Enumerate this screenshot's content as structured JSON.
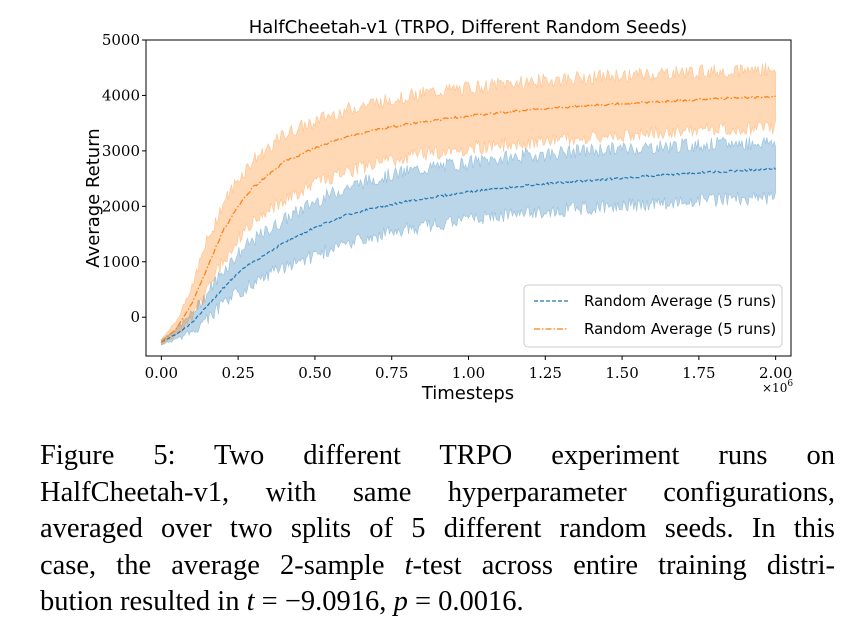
{
  "chart_data": {
    "type": "line",
    "title": "HalfCheetah-v1 (TRPO, Different Random Seeds)",
    "xlabel": "Timesteps",
    "ylabel": "Average Return",
    "x_multiplier": "×10",
    "x_multiplier_exp": "6",
    "xlim": [
      -0.05,
      2.05
    ],
    "ylim": [
      -700,
      5000
    ],
    "xticks": [
      0.0,
      0.25,
      0.5,
      0.75,
      1.0,
      1.25,
      1.5,
      1.75,
      2.0
    ],
    "xtick_labels": [
      "0.00",
      "0.25",
      "0.50",
      "0.75",
      "1.00",
      "1.25",
      "1.50",
      "1.75",
      "2.00"
    ],
    "yticks": [
      0,
      1000,
      2000,
      3000,
      4000,
      5000
    ],
    "ytick_labels": [
      "0",
      "1000",
      "2000",
      "3000",
      "4000",
      "5000"
    ],
    "grid": false,
    "legend_position": "lower-right",
    "series": [
      {
        "name": "Random Average (5 runs)",
        "color": "#1f77b4",
        "line_style": "dashed",
        "x": [
          0.0,
          0.05,
          0.1,
          0.15,
          0.2,
          0.25,
          0.3,
          0.4,
          0.5,
          0.6,
          0.7,
          0.8,
          0.9,
          1.0,
          1.1,
          1.2,
          1.3,
          1.4,
          1.5,
          1.6,
          1.7,
          1.8,
          1.9,
          2.0
        ],
        "mean": [
          -450,
          -300,
          -100,
          200,
          520,
          800,
          1000,
          1350,
          1620,
          1840,
          1980,
          2090,
          2180,
          2260,
          2320,
          2380,
          2430,
          2470,
          2510,
          2550,
          2590,
          2620,
          2650,
          2680
        ],
        "lower": [
          -500,
          -380,
          -250,
          0,
          250,
          480,
          650,
          950,
          1150,
          1350,
          1500,
          1620,
          1720,
          1800,
          1860,
          1920,
          1970,
          2010,
          2050,
          2090,
          2120,
          2150,
          2180,
          2200
        ],
        "upper": [
          -400,
          -230,
          50,
          400,
          800,
          1110,
          1350,
          1720,
          2050,
          2300,
          2470,
          2590,
          2680,
          2750,
          2820,
          2880,
          2930,
          2970,
          3000,
          3030,
          3060,
          3080,
          3100,
          3130
        ]
      },
      {
        "name": "Random Average (5 runs)",
        "color": "#ff7f0e",
        "line_style": "dashdot",
        "x": [
          0.0,
          0.05,
          0.1,
          0.15,
          0.2,
          0.25,
          0.3,
          0.4,
          0.5,
          0.6,
          0.7,
          0.8,
          0.9,
          1.0,
          1.1,
          1.2,
          1.3,
          1.4,
          1.5,
          1.6,
          1.7,
          1.8,
          1.9,
          2.0
        ],
        "mean": [
          -450,
          -200,
          250,
          900,
          1550,
          2000,
          2350,
          2800,
          3050,
          3250,
          3380,
          3480,
          3560,
          3630,
          3690,
          3740,
          3780,
          3820,
          3850,
          3880,
          3910,
          3940,
          3960,
          3980
        ],
        "lower": [
          -500,
          -300,
          0,
          500,
          1050,
          1450,
          1750,
          2150,
          2450,
          2650,
          2800,
          2920,
          3010,
          3080,
          3140,
          3200,
          3250,
          3290,
          3330,
          3360,
          3390,
          3420,
          3440,
          3460
        ],
        "upper": [
          -400,
          -80,
          550,
          1350,
          2000,
          2450,
          2800,
          3250,
          3500,
          3700,
          3840,
          3950,
          4030,
          4100,
          4160,
          4210,
          4250,
          4290,
          4320,
          4350,
          4380,
          4400,
          4420,
          4440
        ]
      }
    ]
  },
  "caption": {
    "line1_a": "Figure 5: Two different TRPO experiment runs on",
    "line2": "HalfCheetah-v1, with same hyperparameter configurations,",
    "line3": "averaged over two splits of 5 different random seeds. In this",
    "line4_a": "case, the average 2-sample ",
    "line4_t": "t",
    "line4_b": "-test across entire training distri-",
    "line5_a": "bution resulted in ",
    "line5_t": "t",
    "line5_eq1": " = −9.0916, ",
    "line5_p": "p",
    "line5_eq2": " = 0.0016."
  }
}
